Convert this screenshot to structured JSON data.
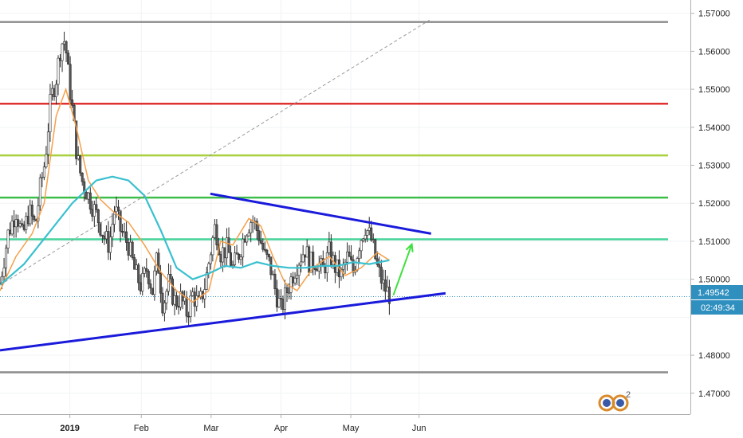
{
  "chart_data": {
    "type": "candlestick",
    "y_range": [
      1.4645,
      1.5735
    ],
    "x_range_days": [
      0,
      86
    ],
    "y_ticks": [
      "1.57000",
      "1.56000",
      "1.55000",
      "1.54000",
      "1.53000",
      "1.52000",
      "1.51000",
      "1.50000",
      "1.49000",
      "1.48000",
      "1.47000"
    ],
    "y_tick_values": [
      1.57,
      1.56,
      1.55,
      1.54,
      1.53,
      1.52,
      1.51,
      1.5,
      1.49,
      1.48,
      1.47
    ],
    "x_ticks": [
      {
        "label": "2019",
        "day": 8.7,
        "bold": true
      },
      {
        "label": "Feb",
        "day": 17.6,
        "bold": false
      },
      {
        "label": "Mar",
        "day": 26.3,
        "bold": false
      },
      {
        "label": "Apr",
        "day": 35.0,
        "bold": false
      },
      {
        "label": "May",
        "day": 43.7,
        "bold": false
      },
      {
        "label": "Jun",
        "day": 52.2,
        "bold": false
      }
    ],
    "price_badge": {
      "value": "1.49542",
      "y": 1.49542,
      "color": "#2f8fbf"
    },
    "time_badge": {
      "value": "02:49:34",
      "color": "#2f8fbf"
    },
    "hidden_tick_fragment": "1.49000",
    "horizontal_levels": [
      {
        "y": 1.5677,
        "color": "#8c8c8c"
      },
      {
        "y": 1.5462,
        "color": "#e03131"
      },
      {
        "y": 1.5326,
        "color": "#a9d13f"
      },
      {
        "y": 1.5215,
        "color": "#3dbf4a"
      },
      {
        "y": 1.5105,
        "color": "#46d39a"
      },
      {
        "y": 1.4755,
        "color": "#8c8c8c"
      }
    ],
    "current_price_line": {
      "y": 1.49542,
      "color": "#2f8fbf"
    },
    "trendlines": [
      {
        "from": [
          0,
          1.4813
        ],
        "to": [
          55.5,
          1.4963
        ],
        "color": "#1a1adb"
      },
      {
        "from": [
          26.2,
          1.5225
        ],
        "to": [
          53.7,
          1.512
        ],
        "color": "#1a1adb"
      },
      {
        "from": [
          0,
          1.4985
        ],
        "to": [
          53.5,
          1.5682
        ],
        "color": "#9a9a9a",
        "dashed": true
      }
    ],
    "arrow": {
      "from": [
        49.0,
        1.4958
      ],
      "to": [
        51.3,
        1.5092
      ],
      "color": "#3ee03e"
    },
    "series": [
      {
        "name": "",
        "color": "#f5a04a",
        "points": [
          [
            0,
            1.497
          ],
          [
            2,
            1.506
          ],
          [
            4,
            1.512
          ],
          [
            5.5,
            1.52
          ],
          [
            7,
            1.543
          ],
          [
            8.2,
            1.55
          ],
          [
            9.5,
            1.54
          ],
          [
            11,
            1.526
          ],
          [
            12.5,
            1.521
          ],
          [
            14,
            1.518
          ],
          [
            16,
            1.515
          ],
          [
            18,
            1.509
          ],
          [
            20,
            1.502
          ],
          [
            22,
            1.497
          ],
          [
            24,
            1.494
          ],
          [
            26,
            1.497
          ],
          [
            27.5,
            1.51
          ],
          [
            29,
            1.509
          ],
          [
            31,
            1.516
          ],
          [
            32.5,
            1.514
          ],
          [
            34,
            1.506
          ],
          [
            35.5,
            1.499
          ],
          [
            37,
            1.497
          ],
          [
            39,
            1.503
          ],
          [
            41,
            1.506
          ],
          [
            43,
            1.501
          ],
          [
            45,
            1.503
          ],
          [
            47,
            1.507
          ],
          [
            48.5,
            1.505
          ]
        ]
      },
      {
        "name": "",
        "color": "#39c0cf",
        "points": [
          [
            0,
            1.4985
          ],
          [
            3,
            1.504
          ],
          [
            6,
            1.512
          ],
          [
            9,
            1.52
          ],
          [
            12,
            1.526
          ],
          [
            14,
            1.527
          ],
          [
            16,
            1.526
          ],
          [
            18,
            1.522
          ],
          [
            20,
            1.513
          ],
          [
            22,
            1.503
          ],
          [
            24,
            1.5
          ],
          [
            26,
            1.5015
          ],
          [
            28,
            1.5035
          ],
          [
            30,
            1.503
          ],
          [
            32,
            1.5045
          ],
          [
            34,
            1.5035
          ],
          [
            36,
            1.503
          ],
          [
            38,
            1.503
          ],
          [
            40,
            1.5035
          ],
          [
            42,
            1.5035
          ],
          [
            44,
            1.5045
          ],
          [
            46,
            1.504
          ],
          [
            48.5,
            1.505
          ]
        ]
      }
    ],
    "candle_path": [
      [
        0,
        1.499
      ],
      [
        1,
        1.512
      ],
      [
        2,
        1.518
      ],
      [
        2.8,
        1.511
      ],
      [
        3.6,
        1.518
      ],
      [
        4.4,
        1.514
      ],
      [
        5,
        1.524
      ],
      [
        5.6,
        1.531
      ],
      [
        6.3,
        1.547
      ],
      [
        7,
        1.553
      ],
      [
        7.6,
        1.562
      ],
      [
        8.1,
        1.563
      ],
      [
        8.6,
        1.552
      ],
      [
        9.1,
        1.543
      ],
      [
        9.6,
        1.532
      ],
      [
        10.2,
        1.526
      ],
      [
        11,
        1.522
      ],
      [
        11.6,
        1.519
      ],
      [
        12.2,
        1.516
      ],
      [
        13,
        1.511
      ],
      [
        13.6,
        1.509
      ],
      [
        14.3,
        1.519
      ],
      [
        15,
        1.513
      ],
      [
        16,
        1.509
      ],
      [
        16.8,
        1.502
      ],
      [
        17.6,
        1.498
      ],
      [
        18.3,
        1.503
      ],
      [
        19,
        1.497
      ],
      [
        19.6,
        1.506
      ],
      [
        20.3,
        1.493
      ],
      [
        21,
        1.499
      ],
      [
        21.8,
        1.494
      ],
      [
        22.5,
        1.495
      ],
      [
        23.3,
        1.491
      ],
      [
        24,
        1.496
      ],
      [
        24.8,
        1.493
      ],
      [
        25.6,
        1.499
      ],
      [
        26.2,
        1.507
      ],
      [
        26.8,
        1.514
      ],
      [
        27.5,
        1.507
      ],
      [
        28.3,
        1.508
      ],
      [
        29,
        1.503
      ],
      [
        29.8,
        1.507
      ],
      [
        30.6,
        1.513
      ],
      [
        31.4,
        1.516
      ],
      [
        32.2,
        1.512
      ],
      [
        33,
        1.506
      ],
      [
        33.6,
        1.504
      ],
      [
        34.3,
        1.497
      ],
      [
        35,
        1.492
      ],
      [
        35.6,
        1.496
      ],
      [
        36.4,
        1.501
      ],
      [
        37.2,
        1.505
      ],
      [
        38,
        1.508
      ],
      [
        38.6,
        1.504
      ],
      [
        39.4,
        1.505
      ],
      [
        40.2,
        1.502
      ],
      [
        41,
        1.507
      ],
      [
        41.8,
        1.503
      ],
      [
        42.5,
        1.501
      ],
      [
        43.3,
        1.506
      ],
      [
        44,
        1.502
      ],
      [
        44.8,
        1.51
      ],
      [
        45.5,
        1.514
      ],
      [
        46.3,
        1.51
      ],
      [
        47,
        1.503
      ],
      [
        47.8,
        1.498
      ],
      [
        48.5,
        1.496
      ]
    ],
    "logo_superscript": "2"
  }
}
